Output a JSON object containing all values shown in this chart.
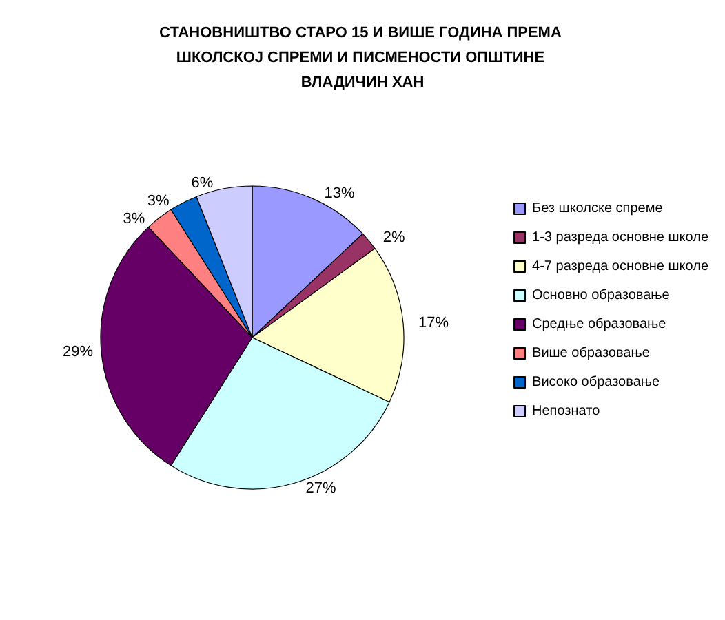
{
  "chart_data": {
    "type": "pie",
    "title": "СТАНОВНИШТВО СТАРО 15 И ВИШЕ ГОДИНА ПРЕМА ШКОЛСКОЈ СПРЕМИ И ПИСМЕНОСТИ ОПШТИНЕ ВЛАДИЧИН ХАН",
    "categories": [
      "Без школске спреме",
      "1-3 разреда основне школе",
      "4-7 разреда основне школе",
      "Основно образовање",
      "Средње образовање",
      "Више образовање",
      "Високо образовање",
      "Непознато"
    ],
    "values": [
      13,
      2,
      17,
      27,
      29,
      3,
      3,
      6
    ],
    "colors": [
      "#9999ff",
      "#993366",
      "#ffffcc",
      "#ccffff",
      "#660066",
      "#ff8080",
      "#0066cc",
      "#ccccff"
    ],
    "value_labels": [
      "13%",
      "2%",
      "17%",
      "27%",
      "29%",
      "3%",
      "3%",
      "6%"
    ],
    "legend": "right"
  }
}
